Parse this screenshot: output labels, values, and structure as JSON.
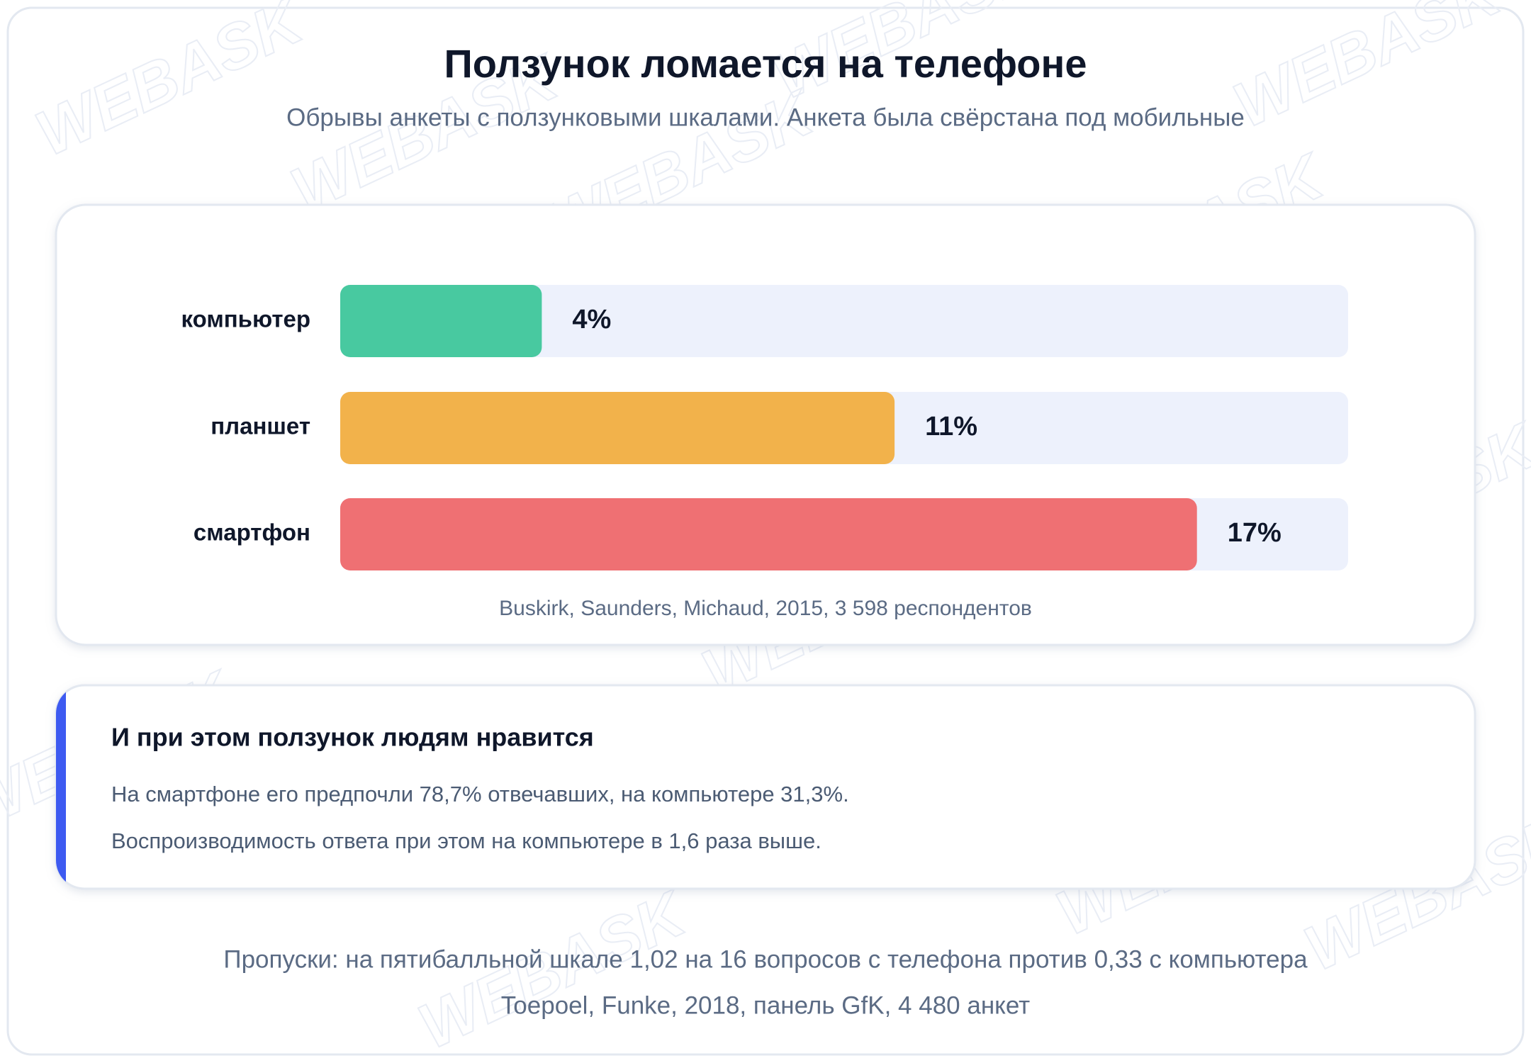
{
  "chart_data": {
    "type": "bar",
    "orientation": "horizontal",
    "title": "Ползунок ломается на телефоне",
    "subtitle": "Обрывы анкеты с ползунковыми шкалами. Анкета была свёрстана под мобильные",
    "categories": [
      "компьютер",
      "планшет",
      "смартфон"
    ],
    "values": [
      4,
      11,
      17
    ],
    "value_labels": [
      "4%",
      "11%",
      "17%"
    ],
    "colors": [
      "#48c9a0",
      "#f2b24b",
      "#ef7073"
    ],
    "track_color": "#edf1fc",
    "xlim": [
      0,
      20
    ],
    "source": "Buskirk, Saunders, Michaud, 2015, 3 598 респондентов"
  },
  "callout": {
    "title": "И при этом ползунок людям нравится",
    "lines": [
      "На смартфоне его предпочли 78,7% отвечавших, на компьютере 31,3%.",
      "Воспроизводимость ответа при этом на компьютере в 1,6 раза выше."
    ]
  },
  "footer": [
    "Пропуски: на пятибалльной шкале 1,02 на 16 вопросов с телефона против 0,33 с компьютера",
    "Toepoel, Funke, 2018, панель GfK, 4 480 анкет"
  ],
  "watermark": "WEBASK"
}
